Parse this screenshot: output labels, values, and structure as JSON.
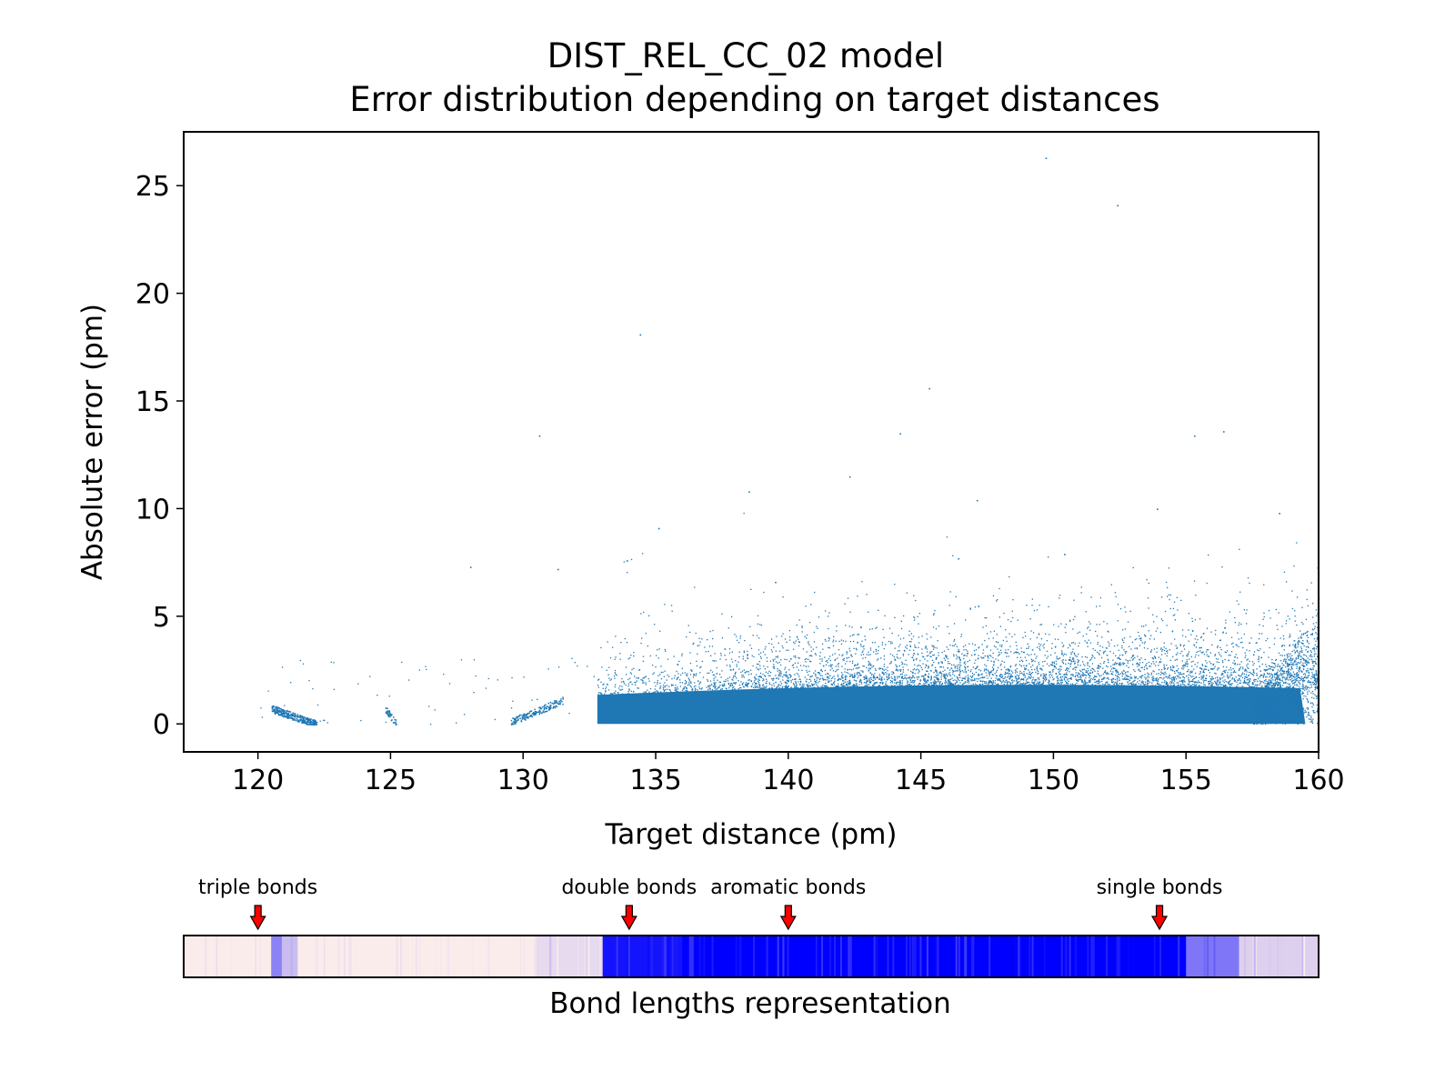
{
  "chart_data": [
    {
      "type": "scatter",
      "title": "DIST_REL_CC_02 model",
      "subtitle": "Error distribution depending on target distances",
      "xlabel": "Target distance (pm)",
      "ylabel": "Absolute error (pm)",
      "xlim": [
        117.2,
        160
      ],
      "ylim": [
        -1.3,
        27.5
      ],
      "xticks": [
        120,
        125,
        130,
        135,
        140,
        145,
        150,
        155,
        160
      ],
      "yticks": [
        0,
        5,
        10,
        15,
        20,
        25
      ],
      "xtick_labels": [
        "120",
        "125",
        "130",
        "135",
        "140",
        "145",
        "150",
        "155",
        "160"
      ],
      "ytick_labels": [
        "0",
        "5",
        "10",
        "15",
        "20",
        "25"
      ],
      "grid": false,
      "point_color": "#1f77b4",
      "clusters": [
        {
          "x_range": [
            120.5,
            122.2
          ],
          "y_max": 0.8
        },
        {
          "x_range": [
            124.8,
            125.2
          ],
          "y_max": 0.8
        },
        {
          "x_range": [
            129.5,
            131.5
          ],
          "y_max": 1.2
        },
        {
          "x_range": [
            132.8,
            159.5
          ],
          "y_max": 2.0
        }
      ],
      "outliers": [
        [
          149.7,
          26.3
        ],
        [
          152.4,
          24.1
        ],
        [
          134.4,
          18.1
        ],
        [
          145.3,
          15.6
        ],
        [
          130.6,
          13.4
        ],
        [
          144.2,
          13.5
        ],
        [
          155.3,
          13.4
        ],
        [
          156.4,
          13.6
        ],
        [
          142.3,
          11.5
        ],
        [
          147.1,
          10.4
        ],
        [
          138.5,
          10.8
        ],
        [
          153.9,
          10.0
        ],
        [
          158.5,
          9.8
        ],
        [
          135.1,
          9.1
        ],
        [
          150.4,
          7.9
        ],
        [
          128.0,
          7.3
        ],
        [
          131.3,
          7.2
        ],
        [
          133.9,
          7.6
        ],
        [
          139.5,
          6.6
        ],
        [
          146.4,
          7.7
        ]
      ]
    },
    {
      "type": "heatmap",
      "xlabel": "Bond lengths representation",
      "colors": {
        "low": "#fbecec",
        "high": "#0000ff",
        "arrow": "#ff0000"
      },
      "annotations": [
        {
          "text": "triple bonds",
          "x": 120
        },
        {
          "text": "double bonds",
          "x": 134
        },
        {
          "text": "aromatic bonds",
          "x": 140
        },
        {
          "text": "single bonds",
          "x": 154
        }
      ],
      "bands": [
        {
          "range": [
            117.2,
            120.5
          ],
          "intensity": 0.0
        },
        {
          "range": [
            120.5,
            120.9
          ],
          "intensity": 0.45
        },
        {
          "range": [
            120.9,
            121.5
          ],
          "intensity": 0.2
        },
        {
          "range": [
            121.5,
            130.5
          ],
          "intensity": 0.0
        },
        {
          "range": [
            130.5,
            133.0
          ],
          "intensity": 0.08
        },
        {
          "range": [
            133.0,
            136.0
          ],
          "intensity": 0.92
        },
        {
          "range": [
            136.0,
            155.0
          ],
          "intensity": 1.0
        },
        {
          "range": [
            155.0,
            157.0
          ],
          "intensity": 0.5
        },
        {
          "range": [
            157.0,
            160.0
          ],
          "intensity": 0.12
        }
      ]
    }
  ]
}
